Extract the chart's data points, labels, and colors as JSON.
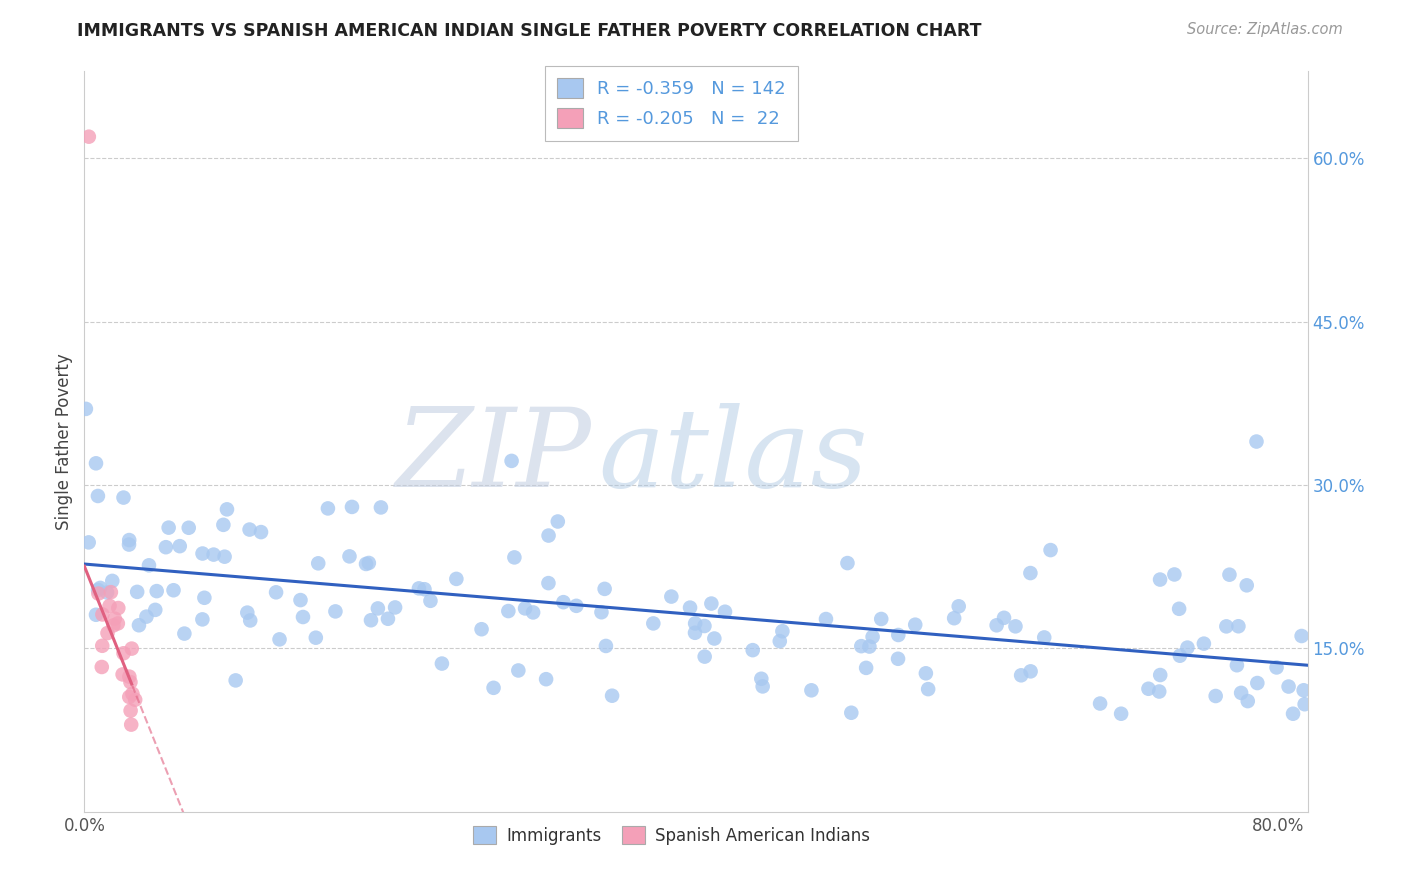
{
  "title": "IMMIGRANTS VS SPANISH AMERICAN INDIAN SINGLE FATHER POVERTY CORRELATION CHART",
  "source": "Source: ZipAtlas.com",
  "ylabel": "Single Father Poverty",
  "watermark_zip": "ZIP",
  "watermark_atlas": "atlas",
  "xlim": [
    0.0,
    0.82
  ],
  "ylim": [
    0.0,
    0.68
  ],
  "xtick_positions": [
    0.0,
    0.1,
    0.2,
    0.3,
    0.4,
    0.5,
    0.6,
    0.7,
    0.8
  ],
  "xticklabels": [
    "0.0%",
    "",
    "",
    "",
    "",
    "",
    "",
    "",
    "80.0%"
  ],
  "yticks_right": [
    0.15,
    0.3,
    0.45,
    0.6
  ],
  "ytick_right_labels": [
    "15.0%",
    "30.0%",
    "45.0%",
    "60.0%"
  ],
  "blue_R": -0.359,
  "blue_N": 142,
  "pink_R": -0.205,
  "pink_N": 22,
  "blue_color": "#a8c8f0",
  "pink_color": "#f4a0b8",
  "blue_line_color": "#3060c0",
  "pink_line_color": "#e06080",
  "legend_label_blue": "Immigrants",
  "legend_label_pink": "Spanish American Indians",
  "grid_color": "#cccccc",
  "background_color": "#ffffff",
  "title_color": "#222222",
  "source_color": "#999999",
  "right_axis_color": "#5599dd",
  "ylabel_color": "#444444"
}
